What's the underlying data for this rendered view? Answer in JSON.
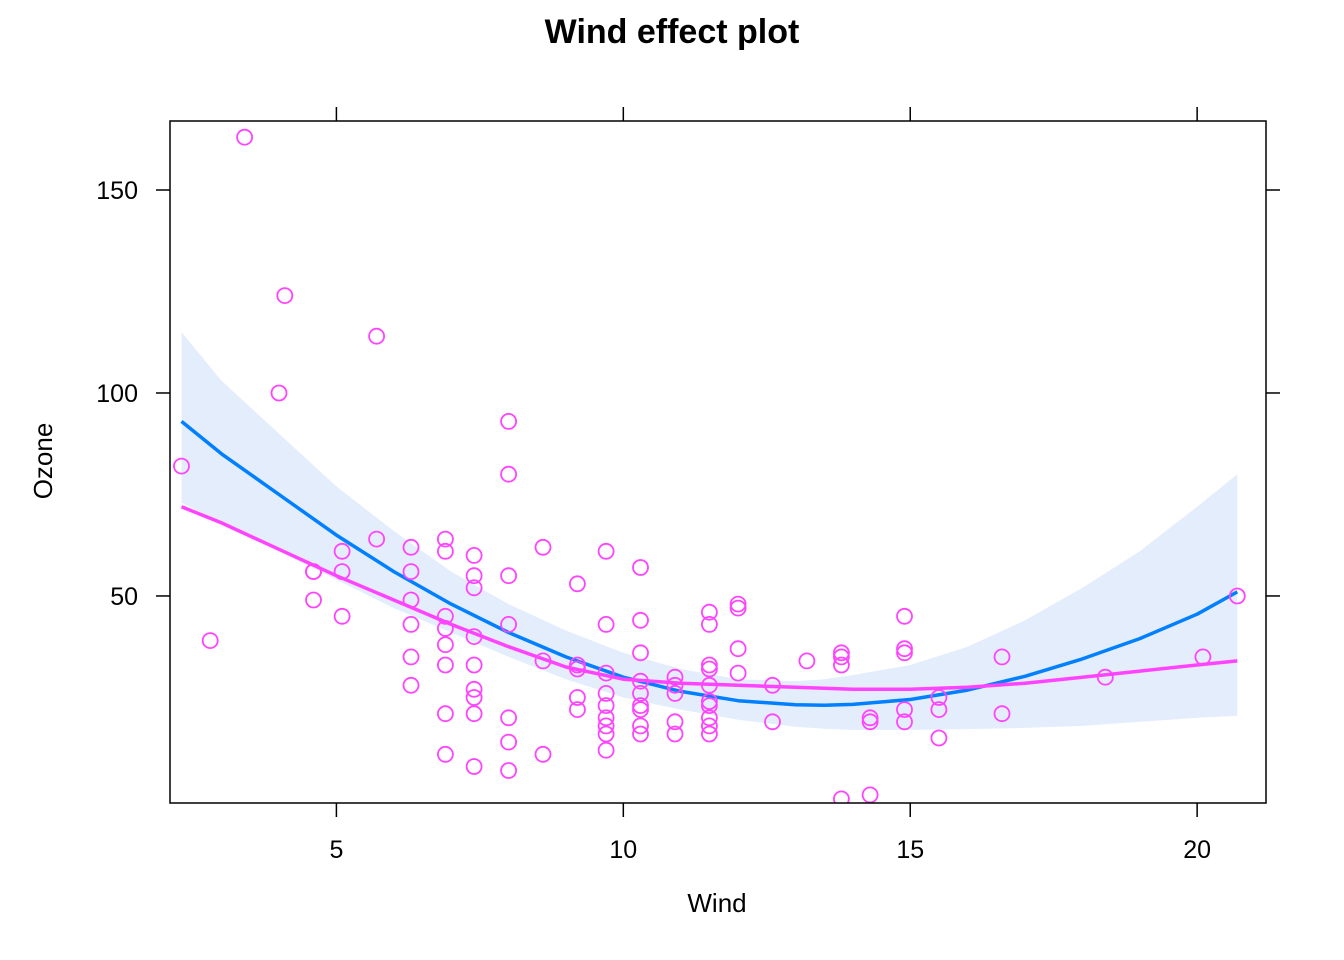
{
  "chart_data": {
    "type": "scatter",
    "title": "Wind effect plot",
    "xlabel": "Wind",
    "ylabel": "Ozone",
    "xlim": [
      2.1,
      21.2
    ],
    "ylim": [
      -1,
      167
    ],
    "xticks": [
      5,
      10,
      15,
      20
    ],
    "yticks": [
      50,
      100,
      150
    ],
    "xtick_labels": [
      "5",
      "10",
      "15",
      "20"
    ],
    "ytick_labels": [
      "50",
      "100",
      "150"
    ],
    "grid": false,
    "legend": "none",
    "colors": {
      "points": "#ff44ff",
      "fit_line": "#0080ff",
      "smooth_line": "#ff44ff",
      "band": "#e4edfc"
    },
    "points": [
      [
        2.3,
        82
      ],
      [
        2.8,
        39
      ],
      [
        3.4,
        163
      ],
      [
        4.0,
        100
      ],
      [
        4.1,
        124
      ],
      [
        4.6,
        56
      ],
      [
        4.6,
        56
      ],
      [
        4.6,
        49
      ],
      [
        5.1,
        61
      ],
      [
        5.1,
        56
      ],
      [
        5.1,
        45
      ],
      [
        5.7,
        114
      ],
      [
        5.7,
        64
      ],
      [
        6.3,
        62
      ],
      [
        6.3,
        56
      ],
      [
        6.3,
        49
      ],
      [
        6.3,
        43
      ],
      [
        6.3,
        35
      ],
      [
        6.3,
        28
      ],
      [
        6.9,
        64
      ],
      [
        6.9,
        61
      ],
      [
        6.9,
        45
      ],
      [
        6.9,
        42
      ],
      [
        6.9,
        38
      ],
      [
        6.9,
        33
      ],
      [
        6.9,
        21
      ],
      [
        6.9,
        11
      ],
      [
        7.4,
        60
      ],
      [
        7.4,
        55
      ],
      [
        7.4,
        52
      ],
      [
        7.4,
        40
      ],
      [
        7.4,
        33
      ],
      [
        7.4,
        27
      ],
      [
        7.4,
        25
      ],
      [
        7.4,
        21
      ],
      [
        7.4,
        8
      ],
      [
        8.0,
        93
      ],
      [
        8.0,
        80
      ],
      [
        8.0,
        55
      ],
      [
        8.0,
        43
      ],
      [
        8.0,
        20
      ],
      [
        8.0,
        14
      ],
      [
        8.0,
        7
      ],
      [
        8.6,
        62
      ],
      [
        8.6,
        34
      ],
      [
        8.6,
        11
      ],
      [
        9.2,
        53
      ],
      [
        9.2,
        33
      ],
      [
        9.2,
        32
      ],
      [
        9.2,
        25
      ],
      [
        9.2,
        22
      ],
      [
        9.7,
        61
      ],
      [
        9.7,
        43
      ],
      [
        9.7,
        31
      ],
      [
        9.7,
        26
      ],
      [
        9.7,
        20
      ],
      [
        9.7,
        18
      ],
      [
        9.7,
        16
      ],
      [
        9.7,
        12
      ],
      [
        9.7,
        23
      ],
      [
        10.3,
        57
      ],
      [
        10.3,
        44
      ],
      [
        10.3,
        36
      ],
      [
        10.3,
        29
      ],
      [
        10.3,
        26
      ],
      [
        10.3,
        23
      ],
      [
        10.3,
        22
      ],
      [
        10.3,
        18
      ],
      [
        10.3,
        16
      ],
      [
        10.9,
        30
      ],
      [
        10.9,
        28
      ],
      [
        10.9,
        26
      ],
      [
        10.9,
        19
      ],
      [
        10.9,
        16
      ],
      [
        11.5,
        46
      ],
      [
        11.5,
        43
      ],
      [
        11.5,
        33
      ],
      [
        11.5,
        32
      ],
      [
        11.5,
        28
      ],
      [
        11.5,
        24
      ],
      [
        11.5,
        23
      ],
      [
        11.5,
        20
      ],
      [
        11.5,
        18
      ],
      [
        11.5,
        16
      ],
      [
        12.0,
        48
      ],
      [
        12.0,
        47
      ],
      [
        12.0,
        37
      ],
      [
        12.0,
        31
      ],
      [
        12.6,
        28
      ],
      [
        12.6,
        19
      ],
      [
        13.2,
        34
      ],
      [
        13.8,
        36
      ],
      [
        13.8,
        35
      ],
      [
        13.8,
        33
      ],
      [
        13.8,
        0
      ],
      [
        14.3,
        20
      ],
      [
        14.3,
        19
      ],
      [
        14.3,
        1
      ],
      [
        14.9,
        45
      ],
      [
        14.9,
        37
      ],
      [
        14.9,
        36
      ],
      [
        14.9,
        22
      ],
      [
        14.9,
        19
      ],
      [
        15.5,
        25
      ],
      [
        15.5,
        22
      ],
      [
        15.5,
        15
      ],
      [
        16.6,
        35
      ],
      [
        16.6,
        21
      ],
      [
        18.4,
        30
      ],
      [
        20.1,
        35
      ],
      [
        20.7,
        50
      ]
    ],
    "fit": {
      "x": [
        2.3,
        3.0,
        4.0,
        5.0,
        6.0,
        7.0,
        8.0,
        9.0,
        10.0,
        11.0,
        12.0,
        13.0,
        13.5,
        14.0,
        15.0,
        16.0,
        17.0,
        18.0,
        19.0,
        20.0,
        20.7
      ],
      "y": [
        93,
        85,
        75,
        65,
        56,
        48,
        41,
        35,
        30,
        26.5,
        24.2,
        23.2,
        23.1,
        23.3,
        24.5,
        26.8,
        30.2,
        34.5,
        39.5,
        45.5,
        51
      ],
      "lower": [
        73,
        68,
        61,
        54,
        47,
        41,
        35,
        29.5,
        25,
        22,
        19.5,
        17.8,
        17.3,
        17,
        17,
        17.2,
        17.5,
        18,
        19,
        20,
        20.5
      ],
      "upper": [
        115,
        103,
        90,
        77,
        66,
        56,
        48,
        41.5,
        36,
        32,
        29.5,
        29,
        29.5,
        30.5,
        33,
        37.5,
        44,
        52,
        61,
        72,
        80
      ]
    },
    "smooth": {
      "x": [
        2.3,
        3.0,
        4.0,
        5.0,
        6.0,
        7.0,
        8.0,
        9.0,
        10.0,
        11.0,
        12.0,
        13.0,
        14.0,
        15.0,
        16.0,
        17.0,
        18.0,
        19.0,
        20.0,
        20.7
      ],
      "y": [
        72,
        68,
        61.5,
        55,
        49,
        43,
        37.5,
        32.5,
        29.5,
        28.5,
        28,
        27.5,
        27,
        27,
        27.5,
        28.5,
        30,
        31.5,
        33,
        34
      ]
    }
  }
}
